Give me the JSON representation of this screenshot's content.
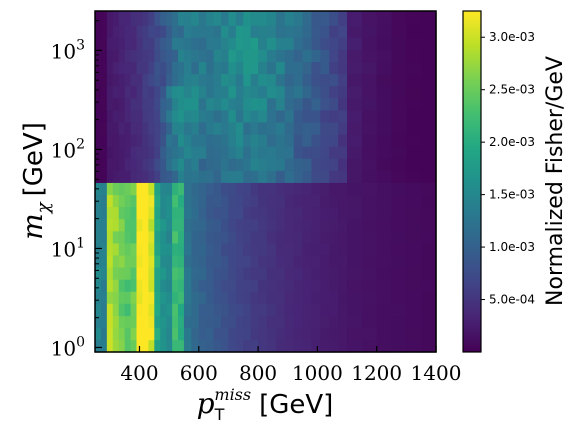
{
  "chart_data": {
    "type": "heatmap",
    "title": "",
    "xlabel": "p_T^miss [GeV]",
    "xlabel_parts": {
      "symbol": "p",
      "sub": "T",
      "sup": "miss",
      "unit": "[GeV]"
    },
    "ylabel": "m_chi [GeV]",
    "ylabel_parts": {
      "symbol": "m",
      "sub": "χ",
      "unit": "[GeV]"
    },
    "x_range": [
      250,
      1400
    ],
    "x_ticks": [
      400,
      600,
      800,
      1000,
      1200,
      1400
    ],
    "x_tick_labels": [
      "400",
      "600",
      "800",
      "1000",
      "1200",
      "1400"
    ],
    "y_scale": "log",
    "y_range": [
      0.9,
      2500
    ],
    "y_ticks": [
      1,
      10,
      100,
      1000
    ],
    "y_tick_labels": [
      {
        "base": "10",
        "exp": "0"
      },
      {
        "base": "10",
        "exp": "1"
      },
      {
        "base": "10",
        "exp": "2"
      },
      {
        "base": "10",
        "exp": "3"
      }
    ],
    "x_bin_edges": [
      250,
      270,
      290,
      310,
      330,
      350,
      370,
      390,
      410,
      430,
      450,
      470,
      490,
      510,
      530,
      550,
      575,
      600,
      625,
      650,
      675,
      700,
      725,
      750,
      775,
      800,
      830,
      860,
      890,
      920,
      950,
      980,
      1010,
      1040,
      1070,
      1100,
      1150,
      1200,
      1250,
      1300,
      1350,
      1400
    ],
    "y_bin_edges": [
      0.9,
      1.2,
      1.6,
      2.1,
      2.8,
      3.7,
      4.9,
      6.5,
      8.6,
      11.4,
      15.1,
      20.0,
      26.5,
      35.1,
      46.5,
      61.6,
      81.6,
      108,
      143,
      190,
      251,
      333,
      441,
      584,
      774,
      1025,
      1358,
      1800,
      2500
    ],
    "colorbar": {
      "label": "Normalized Fisher/GeV",
      "range": [
        0,
        0.00325
      ],
      "ticks": [
        0.0005,
        0.001,
        0.0015,
        0.002,
        0.0025,
        0.003
      ],
      "tick_labels": [
        "5.0e-04",
        "1.0e-03",
        "1.5e-03",
        "2.0e-03",
        "2.5e-03",
        "3.0e-03"
      ],
      "colormap": "viridis"
    },
    "grid": false
  }
}
